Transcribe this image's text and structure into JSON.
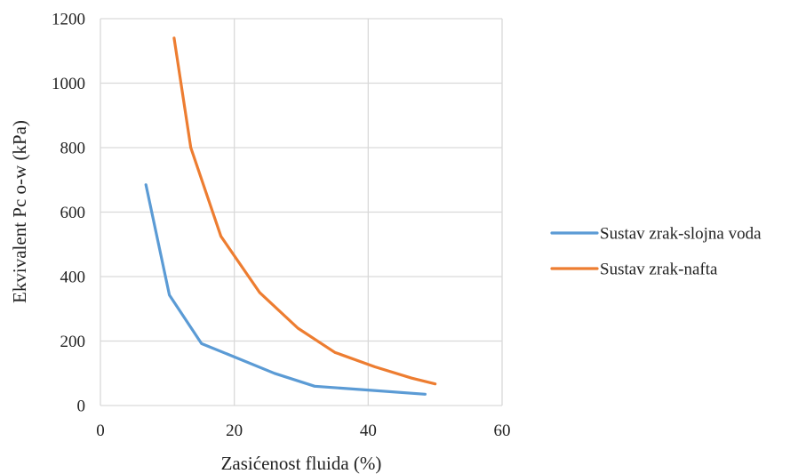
{
  "chart_data": {
    "type": "line",
    "title": "",
    "xlabel": "Zasićenost fluida (%)",
    "ylabel": "Ekvivalent Pc o-w (kPa)",
    "xlim": [
      0,
      60
    ],
    "ylim": [
      0,
      1200
    ],
    "x_ticks": [
      0,
      20,
      40,
      60
    ],
    "y_ticks": [
      0,
      200,
      400,
      600,
      800,
      1000,
      1200
    ],
    "grid": "vertical and horizontal",
    "legend_position": "right",
    "series": [
      {
        "name": "Sustav zrak-slojna voda",
        "color": "#5b9bd5",
        "x": [
          6.8,
          10.3,
          15.1,
          20.1,
          26.0,
          32.0,
          40.0,
          48.5
        ],
        "y": [
          685,
          343,
          192,
          150,
          100,
          60,
          48,
          35
        ]
      },
      {
        "name": "Sustav zrak-nafta",
        "color": "#ed7d31",
        "x": [
          11.0,
          13.5,
          18.0,
          23.8,
          29.5,
          35.0,
          41.0,
          46.5,
          50.0
        ],
        "y": [
          1140,
          800,
          525,
          350,
          240,
          165,
          120,
          85,
          67
        ]
      }
    ]
  }
}
